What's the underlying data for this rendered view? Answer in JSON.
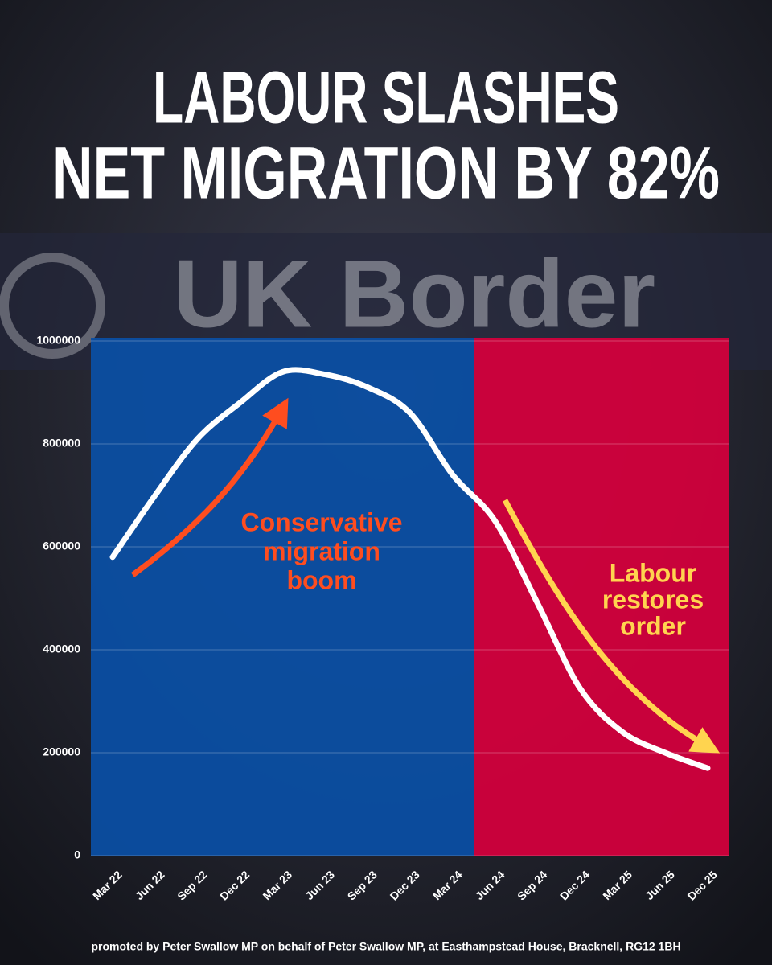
{
  "chart_data": {
    "type": "line",
    "title": [
      "LABOUR SLASHES",
      "NET MIGRATION BY 82%"
    ],
    "background_text": "UK Border",
    "categories": [
      "Mar 22",
      "Jun 22",
      "Sep 22",
      "Dec 22",
      "Mar 23",
      "Jun 23",
      "Sep 23",
      "Dec 23",
      "Mar 24",
      "Jun 24",
      "Sep 24",
      "Dec 24",
      "Mar 25",
      "Jun 25",
      "Dec 25"
    ],
    "series": [
      {
        "color": "#ffffff",
        "values": [
          580000,
          700000,
          810000,
          880000,
          940000,
          935000,
          910000,
          860000,
          740000,
          650000,
          490000,
          325000,
          240000,
          200000,
          170000
        ]
      }
    ],
    "ylim": [
      0,
      1000000
    ],
    "yticks": [
      0,
      200000,
      400000,
      600000,
      800000,
      1000000
    ],
    "grid": true,
    "background_colors": [
      "#0b4ea2",
      "#d2003c"
    ],
    "split_after": "Mar 24",
    "annotations": [
      {
        "lines": [
          "Conservative",
          "migration",
          "boom"
        ],
        "color": "#ff4d1f"
      },
      {
        "lines": [
          "Labour",
          "restores",
          "order"
        ],
        "color": "#ffd44f"
      }
    ],
    "footer": "promoted by Peter Swallow MP on behalf of Peter Swallow MP, at Easthampstead House, Bracknell, RG12 1BH"
  }
}
